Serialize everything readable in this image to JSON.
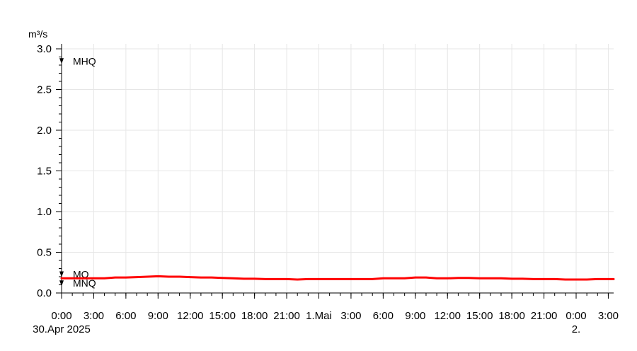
{
  "chart_data": {
    "type": "line",
    "y_unit": "m³/s",
    "ylim": [
      0,
      3.0
    ],
    "y_ticks": [
      0.0,
      0.5,
      1.0,
      1.5,
      2.0,
      2.5,
      3.0
    ],
    "y_tick_labels": [
      "0.0",
      "0.5",
      "1.0",
      "1.5",
      "2.0",
      "2.5",
      "3.0"
    ],
    "y_minor_step": 0.1,
    "x_unit": "hours from 30.Apr 2025 0:00",
    "xlim": [
      0,
      51.5
    ],
    "x_ticks": [
      0,
      3,
      6,
      9,
      12,
      15,
      18,
      21,
      24,
      27,
      30,
      33,
      36,
      39,
      42,
      45,
      48,
      51
    ],
    "x_tick_labels": [
      "0:00",
      "3:00",
      "6:00",
      "9:00",
      "12:00",
      "15:00",
      "18:00",
      "21:00",
      "1.Mai",
      "3:00",
      "6:00",
      "9:00",
      "12:00",
      "15:00",
      "18:00",
      "21:00",
      "0:00",
      "3:00"
    ],
    "x_date_labels": [
      {
        "x": 0,
        "text": "30.Apr 2025"
      },
      {
        "x": 48,
        "text": "2."
      }
    ],
    "grid": true,
    "reference_lines": [
      {
        "label": "MHQ",
        "value": 2.85
      },
      {
        "label": "MQ",
        "value": 0.23
      },
      {
        "label": "MNQ",
        "value": 0.12
      }
    ],
    "series": [
      {
        "color": "#ff0000",
        "x": [
          0,
          1,
          2,
          3,
          4,
          5,
          6,
          7,
          8,
          9,
          10,
          11,
          12,
          13,
          14,
          15,
          16,
          17,
          18,
          19,
          20,
          21,
          22,
          23,
          24,
          25,
          26,
          27,
          28,
          29,
          30,
          31,
          32,
          33,
          34,
          35,
          36,
          37,
          38,
          39,
          40,
          41,
          42,
          43,
          44,
          45,
          46,
          47,
          48,
          49,
          50,
          51,
          51.5
        ],
        "y": [
          0.18,
          0.18,
          0.18,
          0.18,
          0.18,
          0.19,
          0.19,
          0.195,
          0.2,
          0.205,
          0.2,
          0.2,
          0.195,
          0.19,
          0.19,
          0.185,
          0.18,
          0.175,
          0.175,
          0.17,
          0.17,
          0.17,
          0.165,
          0.17,
          0.17,
          0.17,
          0.17,
          0.17,
          0.17,
          0.17,
          0.18,
          0.18,
          0.18,
          0.19,
          0.19,
          0.18,
          0.18,
          0.185,
          0.185,
          0.18,
          0.18,
          0.18,
          0.175,
          0.175,
          0.17,
          0.17,
          0.17,
          0.165,
          0.165,
          0.165,
          0.17,
          0.17,
          0.17
        ]
      }
    ]
  }
}
